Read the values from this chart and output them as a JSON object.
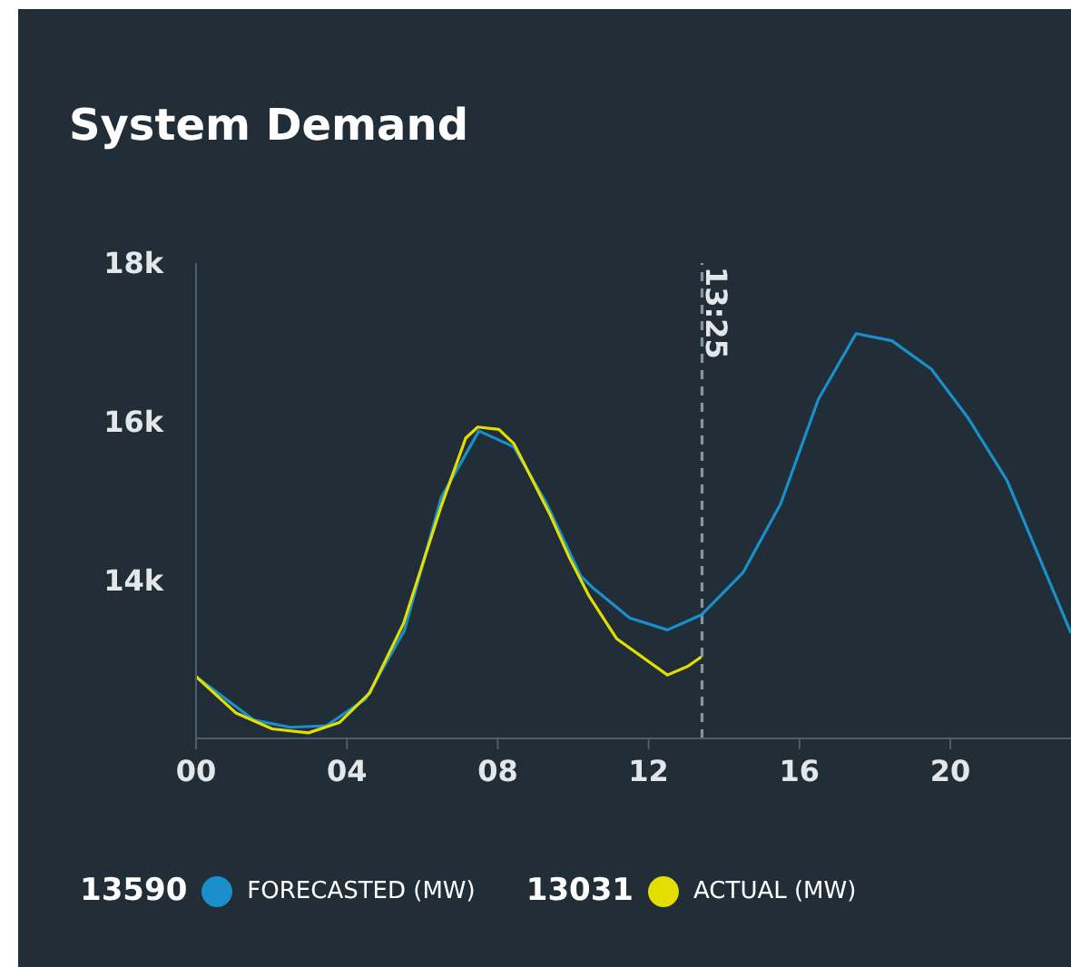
{
  "chart_data": {
    "type": "line",
    "title": "System Demand",
    "xlim": [
      0,
      23.2
    ],
    "xticks": [
      {
        "value": 0,
        "label": "00"
      },
      {
        "value": 4,
        "label": "04"
      },
      {
        "value": 8,
        "label": "08"
      },
      {
        "value": 12,
        "label": "12"
      },
      {
        "value": 16,
        "label": "16"
      },
      {
        "value": 20,
        "label": "20"
      }
    ],
    "ylim": [
      12000,
      18000
    ],
    "yticks": [
      {
        "value": 14000,
        "label": "14k"
      },
      {
        "value": 16000,
        "label": "16k"
      },
      {
        "value": 18000,
        "label": "18k"
      }
    ],
    "legend": "bottom left",
    "marker": "none",
    "line_style": "solid",
    "series": [
      {
        "name": "FORECASTED (MW)",
        "color": "#1a8fc9",
        "x": [
          0,
          1.54,
          2.5,
          3.46,
          4.5,
          5.53,
          6.5,
          7.5,
          8.43,
          9.3,
          10.2,
          10.5,
          11.5,
          12.5,
          13.4,
          14.5,
          15.5,
          16.5,
          17.5,
          18.45,
          19.5,
          20.45,
          21.5,
          23.2
        ],
        "values": [
          12780,
          12230,
          12140,
          12160,
          12500,
          13370,
          15040,
          15880,
          15680,
          14960,
          14050,
          13910,
          13520,
          13370,
          13560,
          14090,
          14960,
          16280,
          17110,
          17020,
          16660,
          16060,
          15260,
          13330
        ]
      },
      {
        "name": "ACTUAL (MW)",
        "color": "#e3dd00",
        "x": [
          0,
          1.06,
          2.02,
          2.98,
          3.8,
          4.6,
          5.5,
          6.5,
          7.15,
          7.47,
          8.03,
          8.43,
          9.4,
          9.9,
          10.43,
          11.15,
          12.5,
          13.04,
          13.4
        ],
        "values": [
          12780,
          12320,
          12120,
          12070,
          12200,
          12570,
          13450,
          14930,
          15790,
          15930,
          15900,
          15720,
          14810,
          14280,
          13790,
          13260,
          12800,
          12910,
          13030
        ]
      }
    ],
    "ref_lines": [
      {
        "axis": "x",
        "value": 13.4167,
        "label": "13:25",
        "color": "#8a949c",
        "line_style": "dashed"
      }
    ],
    "annotations": [
      "13590",
      "13031"
    ]
  }
}
